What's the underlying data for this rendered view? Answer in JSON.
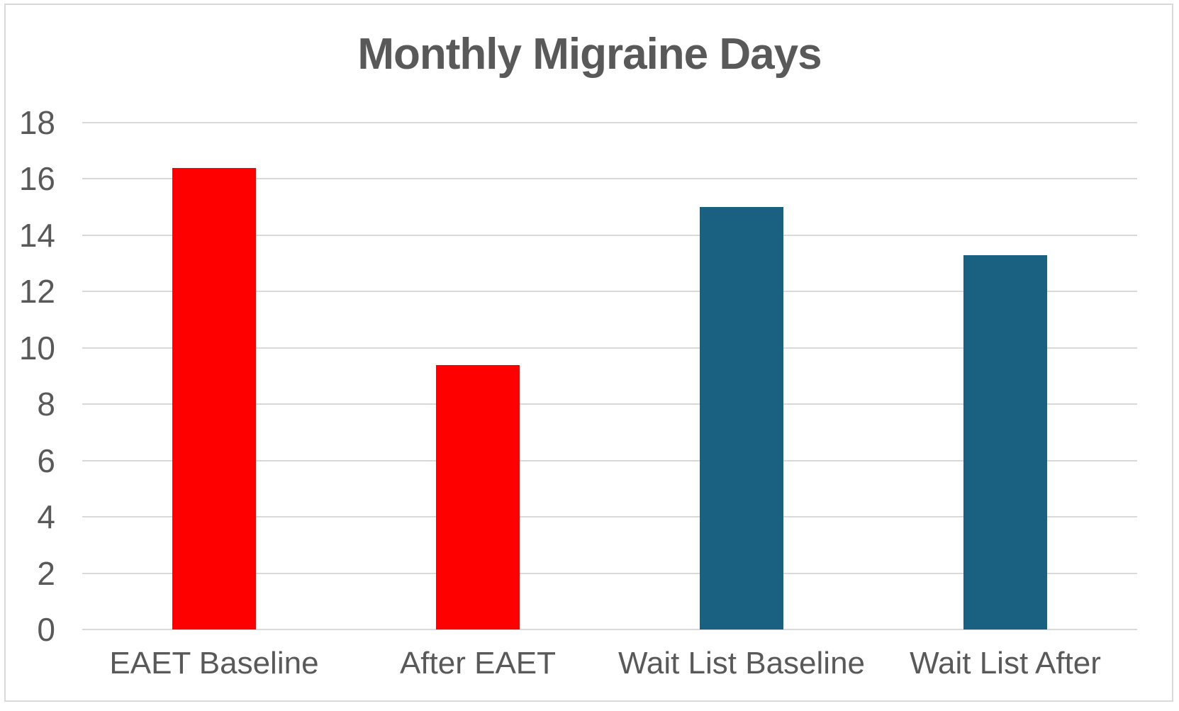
{
  "chart_data": {
    "type": "bar",
    "title": "Monthly Migraine Days",
    "categories": [
      "EAET Baseline",
      "After EAET",
      "Wait List Baseline",
      "Wait List After"
    ],
    "values": [
      16.4,
      9.4,
      15.0,
      13.3
    ],
    "bar_colors": [
      "#FF0000",
      "#FF0000",
      "#1A6080",
      "#1A6080"
    ],
    "ylim": [
      0,
      18
    ],
    "ytick_step": 2,
    "ytick_labels": [
      "0",
      "2",
      "4",
      "6",
      "8",
      "10",
      "12",
      "14",
      "16",
      "18"
    ],
    "xlabel": "",
    "ylabel": "",
    "grid": true,
    "legend_position": "none"
  },
  "colors": {
    "red_bar": "#FF0000",
    "teal_bar": "#1A6080",
    "text": "#595959",
    "gridline": "#D9D9D9",
    "border": "#D9D9D9",
    "background": "#FFFFFF"
  }
}
